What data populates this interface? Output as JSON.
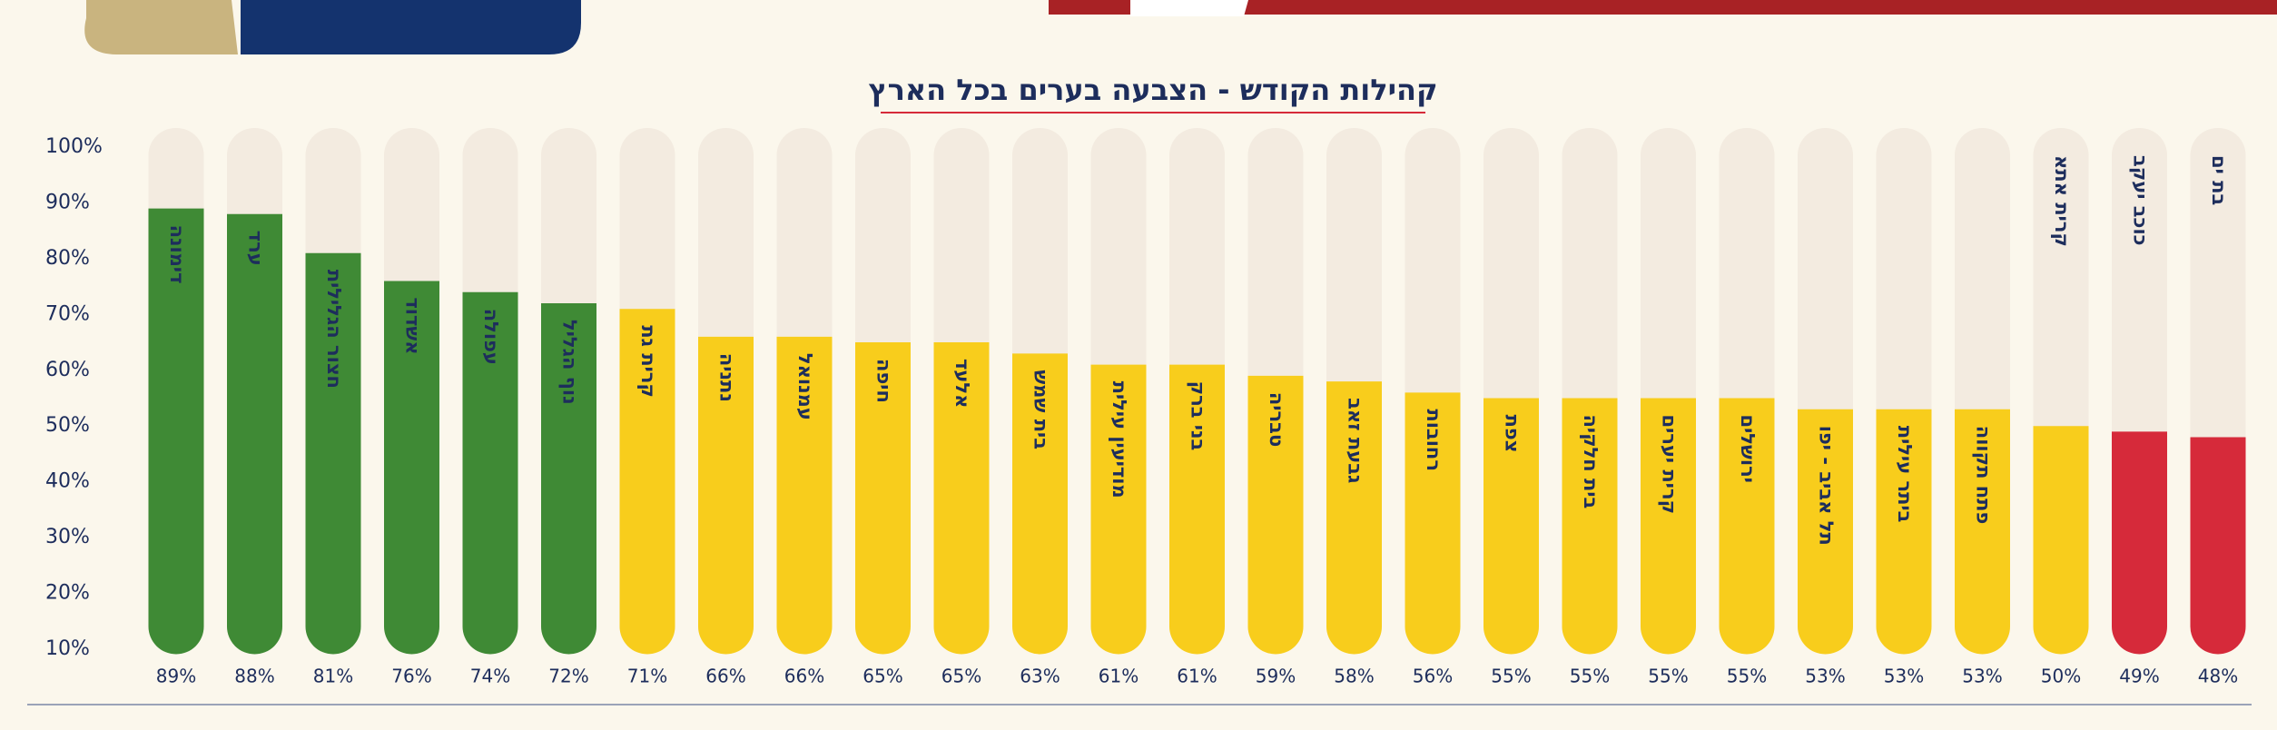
{
  "chart_data": {
    "type": "bar",
    "title": "קהילות הקודש - הצבעה בערים בכל הארץ",
    "categories": [
      "דימונה",
      "ערד",
      "חצור הגלילית",
      "אשדוד",
      "עפולה",
      "נוף הגליל",
      "קרית גת",
      "נתניה",
      "עמנואל",
      "חיפה",
      "אלעד",
      "בית שמש",
      "מודיעין עילית",
      "בני ברק",
      "טבריה",
      "גבעת זאב",
      "רחובות",
      "צפת",
      "בית חלקיה",
      "קרית יערים",
      "ירושלים",
      "תל אביב - יפו",
      "ביתר עילית",
      "פתח תקווה",
      "קרית אתא",
      "כוכב יעקב",
      "בת ים"
    ],
    "values": [
      89,
      88,
      81,
      76,
      74,
      72,
      71,
      66,
      66,
      65,
      65,
      63,
      61,
      61,
      59,
      58,
      56,
      55,
      55,
      55,
      55,
      53,
      53,
      53,
      50,
      49,
      48
    ],
    "value_labels": [
      "89%",
      "88%",
      "81%",
      "76%",
      "74%",
      "72%",
      "71%",
      "66%",
      "66%",
      "65%",
      "65%",
      "63%",
      "61%",
      "61%",
      "59%",
      "58%",
      "56%",
      "55%",
      "55%",
      "55%",
      "55%",
      "53%",
      "53%",
      "53%",
      "50%",
      "49%",
      "48%"
    ],
    "colors": [
      "#3f8a35",
      "#3f8a35",
      "#3f8a35",
      "#3f8a35",
      "#3f8a35",
      "#3f8a35",
      "#f8cd1c",
      "#f8cd1c",
      "#f8cd1c",
      "#f8cd1c",
      "#f8cd1c",
      "#f8cd1c",
      "#f8cd1c",
      "#f8cd1c",
      "#f8cd1c",
      "#f8cd1c",
      "#f8cd1c",
      "#f8cd1c",
      "#f8cd1c",
      "#f8cd1c",
      "#f8cd1c",
      "#f8cd1c",
      "#f8cd1c",
      "#f8cd1c",
      "#f8cd1c",
      "#d62a3a",
      "#d62a3a"
    ],
    "ylim": [
      10,
      100
    ],
    "yticks": [
      {
        "value": 10,
        "label": "10%"
      },
      {
        "value": 20,
        "label": "20%"
      },
      {
        "value": 30,
        "label": "30%"
      },
      {
        "value": 40,
        "label": "40%"
      },
      {
        "value": 50,
        "label": "50%"
      },
      {
        "value": 60,
        "label": "60%"
      },
      {
        "value": 70,
        "label": "70%"
      },
      {
        "value": 80,
        "label": "80%"
      },
      {
        "value": 90,
        "label": "90%"
      },
      {
        "value": 100,
        "label": "100%"
      }
    ]
  }
}
